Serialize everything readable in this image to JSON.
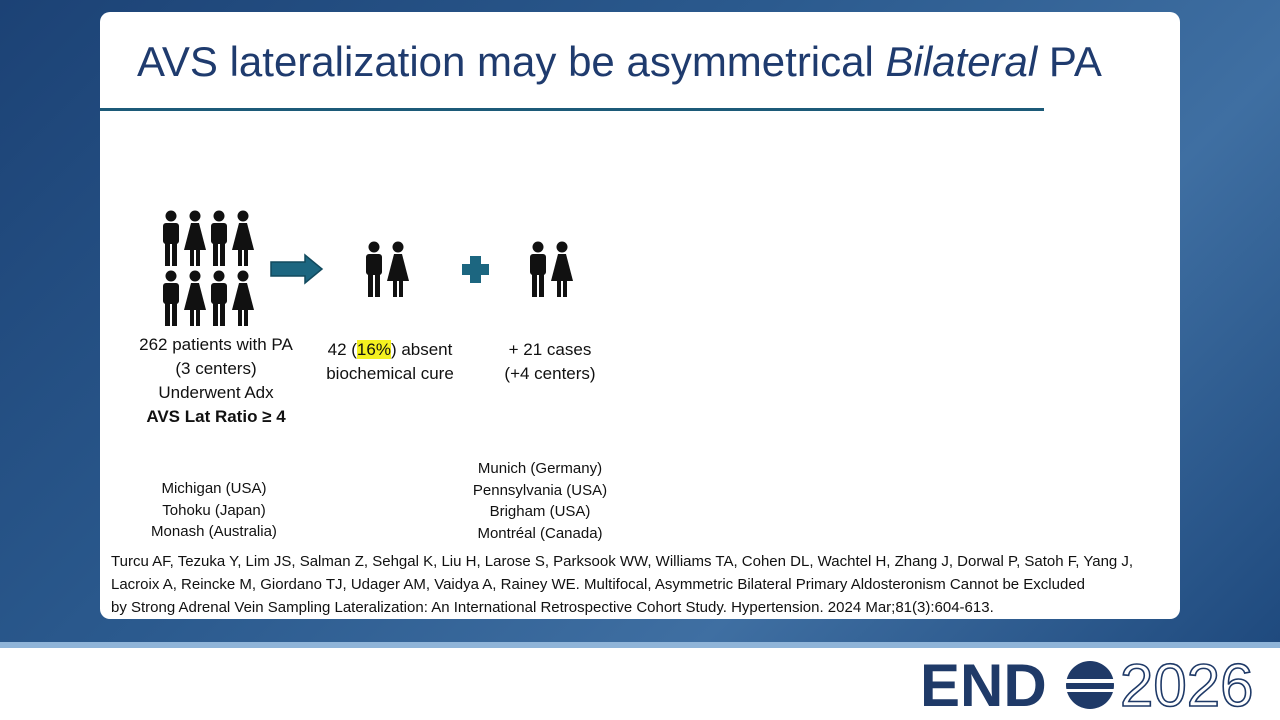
{
  "title": {
    "before": "AVS lateralization may be asymmetrical ",
    "italic": "Bilateral",
    "after": " PA"
  },
  "cohort": {
    "lines": [
      "262 patients with PA",
      "(3 centers)",
      "Underwent Adx"
    ],
    "bold": "AVS Lat Ratio ≥ 4"
  },
  "absent_cure": {
    "before": "42 (",
    "highlight": "16%",
    "after": ") absent",
    "line2": "biochemical cure"
  },
  "extra": {
    "lines": [
      "+ 21 cases",
      "(+4 centers)"
    ]
  },
  "centers_initial": [
    "Michigan (USA)",
    "Tohoku (Japan)",
    "Monash (Australia)"
  ],
  "centers_extra": [
    "Munich (Germany)",
    "Pennsylvania (USA)",
    "Brigham (USA)",
    "Montréal (Canada)"
  ],
  "citation": [
    "Turcu AF, Tezuka Y, Lim JS, Salman Z, Sehgal K, Liu H, Larose S, Parksook WW, Williams TA, Cohen DL, Wachtel H, Zhang J, Dorwal P, Satoh F, Yang J,",
    "Lacroix A, Reincke M, Giordano TJ, Udager AM, Vaidya A, Rainey WE. Multifocal, Asymmetric Bilateral Primary Aldosteronism Cannot be Excluded",
    "by Strong Adrenal Vein Sampling Lateralization: An International Retrospective Cohort Study. Hypertension. 2024 Mar;81(3):604-613."
  ],
  "logo": {
    "left": "END",
    "right": "2026"
  }
}
